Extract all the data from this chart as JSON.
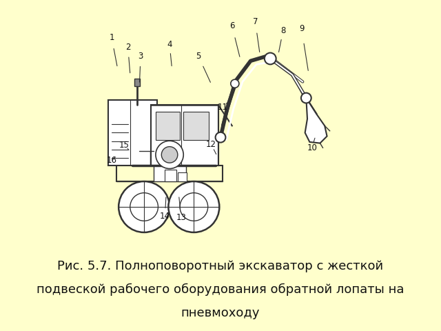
{
  "title_line1": "Рис. 5.7. Полноповоротный экскаватор с жесткой",
  "title_line2": "подвеской рабочего оборудования обратной лопаты на",
  "title_line3": "пневмоходу",
  "bg_color": "#ffffcc",
  "diagram_bg": "#ffffff",
  "line_color": "#333333",
  "title_fontsize": 13
}
